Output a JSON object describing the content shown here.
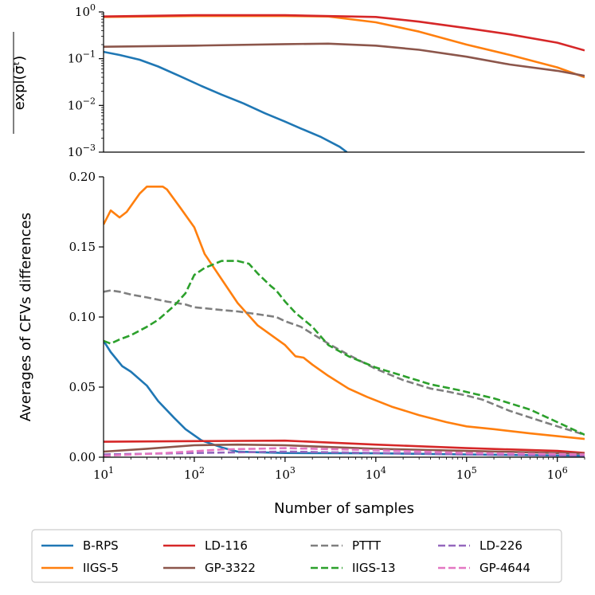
{
  "chart_data": [
    {
      "type": "line",
      "panel": "top",
      "ylabel": "expl(σ̄ᵗ)",
      "yscale": "log",
      "xscale": "log",
      "xlim": [
        10,
        2000000
      ],
      "ylim": [
        0.001,
        1
      ],
      "yticks": [
        {
          "value": 1,
          "base": "10",
          "exp": "0"
        },
        {
          "value": 0.1,
          "base": "10",
          "exp": "−1"
        },
        {
          "value": 0.01,
          "base": "10",
          "exp": "−2"
        },
        {
          "value": 0.001,
          "base": "10",
          "exp": "−3"
        }
      ],
      "series": [
        {
          "name": "B-RPS",
          "color": "#1f77b4",
          "dash": false,
          "x": [
            10,
            15,
            25,
            40,
            70,
            120,
            200,
            350,
            600,
            1000,
            1500,
            2500,
            4000,
            4800
          ],
          "y": [
            0.14,
            0.12,
            0.095,
            0.068,
            0.042,
            0.026,
            0.017,
            0.011,
            0.0068,
            0.0045,
            0.0032,
            0.0021,
            0.0013,
            0.001
          ]
        },
        {
          "name": "IIGS-5",
          "color": "#ff7f0e",
          "dash": false,
          "x": [
            10,
            100,
            1000,
            3000,
            10000,
            30000,
            100000,
            300000,
            1000000,
            2000000
          ],
          "y": [
            0.78,
            0.82,
            0.82,
            0.8,
            0.6,
            0.38,
            0.2,
            0.12,
            0.065,
            0.04
          ]
        },
        {
          "name": "LD-116",
          "color": "#d62728",
          "dash": false,
          "x": [
            10,
            100,
            1000,
            10000,
            30000,
            100000,
            300000,
            1000000,
            2000000
          ],
          "y": [
            0.8,
            0.85,
            0.85,
            0.78,
            0.62,
            0.45,
            0.33,
            0.22,
            0.15
          ]
        },
        {
          "name": "GP-3322",
          "color": "#8c564b",
          "dash": false,
          "x": [
            10,
            100,
            1000,
            3000,
            10000,
            30000,
            100000,
            300000,
            1000000,
            2000000
          ],
          "y": [
            0.18,
            0.19,
            0.205,
            0.21,
            0.19,
            0.155,
            0.11,
            0.075,
            0.055,
            0.043
          ]
        }
      ]
    },
    {
      "type": "line",
      "panel": "bottom",
      "xlabel": "Number of samples",
      "ylabel": "Averages of CFVs differences",
      "xscale": "log",
      "xlim": [
        10,
        2000000
      ],
      "ylim": [
        0,
        0.2
      ],
      "yticks": [
        {
          "value": 0,
          "label": "0.00"
        },
        {
          "value": 0.05,
          "label": "0.05"
        },
        {
          "value": 0.1,
          "label": "0.10"
        },
        {
          "value": 0.15,
          "label": "0.15"
        },
        {
          "value": 0.2,
          "label": "0.20"
        }
      ],
      "xticks": [
        {
          "value": 10,
          "base": "10",
          "exp": "1"
        },
        {
          "value": 100,
          "base": "10",
          "exp": "2"
        },
        {
          "value": 1000,
          "base": "10",
          "exp": "3"
        },
        {
          "value": 10000,
          "base": "10",
          "exp": "4"
        },
        {
          "value": 100000,
          "base": "10",
          "exp": "5"
        },
        {
          "value": 1000000,
          "base": "10",
          "exp": "6"
        }
      ],
      "series": [
        {
          "name": "B-RPS",
          "color": "#1f77b4",
          "dash": false,
          "x": [
            10,
            12,
            16,
            20,
            30,
            40,
            60,
            80,
            120,
            200,
            300,
            500,
            1000,
            10000,
            100000,
            2000000
          ],
          "y": [
            0.083,
            0.075,
            0.065,
            0.061,
            0.051,
            0.04,
            0.028,
            0.02,
            0.012,
            0.007,
            0.004,
            0.0035,
            0.003,
            0.0028,
            0.002,
            0.001
          ]
        },
        {
          "name": "IIGS-5",
          "color": "#ff7f0e",
          "dash": false,
          "x": [
            10,
            12,
            15,
            18,
            25,
            30,
            35,
            45,
            50,
            70,
            100,
            130,
            200,
            300,
            500,
            1000,
            1300,
            1600,
            2000,
            3000,
            5000,
            8000,
            15000,
            30000,
            60000,
            100000,
            200000,
            500000,
            1000000,
            2000000
          ],
          "y": [
            0.166,
            0.176,
            0.171,
            0.175,
            0.188,
            0.193,
            0.193,
            0.193,
            0.191,
            0.178,
            0.164,
            0.145,
            0.127,
            0.11,
            0.094,
            0.08,
            0.072,
            0.071,
            0.066,
            0.058,
            0.049,
            0.043,
            0.036,
            0.03,
            0.025,
            0.022,
            0.02,
            0.017,
            0.015,
            0.013
          ]
        },
        {
          "name": "LD-116",
          "color": "#d62728",
          "dash": false,
          "x": [
            10,
            100,
            1000,
            10000,
            100000,
            1000000,
            2000000
          ],
          "y": [
            0.011,
            0.0115,
            0.0118,
            0.009,
            0.0065,
            0.0045,
            0.003
          ]
        },
        {
          "name": "GP-3322",
          "color": "#8c564b",
          "dash": false,
          "x": [
            10,
            30,
            100,
            300,
            1000,
            10000,
            100000,
            1000000,
            2000000
          ],
          "y": [
            0.004,
            0.006,
            0.0085,
            0.009,
            0.0085,
            0.006,
            0.0045,
            0.003,
            0.0025
          ]
        },
        {
          "name": "PTTT",
          "color": "#7f7f7f",
          "dash": true,
          "x": [
            10,
            12,
            15,
            20,
            30,
            50,
            80,
            100,
            200,
            300,
            500,
            800,
            1000,
            1500,
            2000,
            3000,
            5000,
            10000,
            20000,
            40000,
            60000,
            100000,
            150000,
            300000,
            1000000,
            2000000
          ],
          "y": [
            0.118,
            0.119,
            0.118,
            0.116,
            0.114,
            0.111,
            0.109,
            0.107,
            0.105,
            0.104,
            0.102,
            0.1,
            0.097,
            0.093,
            0.088,
            0.081,
            0.073,
            0.063,
            0.055,
            0.049,
            0.047,
            0.044,
            0.041,
            0.033,
            0.022,
            0.016
          ]
        },
        {
          "name": "IIGS-13",
          "color": "#2ca02c",
          "dash": true,
          "x": [
            10,
            12,
            15,
            20,
            30,
            40,
            60,
            80,
            100,
            130,
            200,
            300,
            400,
            500,
            700,
            800,
            1000,
            1300,
            2000,
            3000,
            5000,
            10000,
            20000,
            40000,
            80000,
            200000,
            500000,
            1000000,
            2000000
          ],
          "y": [
            0.083,
            0.081,
            0.084,
            0.087,
            0.093,
            0.098,
            0.108,
            0.117,
            0.13,
            0.135,
            0.14,
            0.14,
            0.138,
            0.131,
            0.122,
            0.119,
            0.111,
            0.103,
            0.093,
            0.08,
            0.072,
            0.064,
            0.058,
            0.052,
            0.048,
            0.042,
            0.034,
            0.025,
            0.016
          ]
        },
        {
          "name": "LD-226",
          "color": "#9467bd",
          "dash": true,
          "x": [
            10,
            100,
            1000,
            10000,
            100000,
            2000000
          ],
          "y": [
            0.002,
            0.003,
            0.004,
            0.003,
            0.002,
            0.001
          ]
        },
        {
          "name": "GP-4644",
          "color": "#e377c2",
          "dash": true,
          "x": [
            10,
            50,
            200,
            1000,
            10000,
            100000,
            2000000
          ],
          "y": [
            0.001,
            0.003,
            0.0055,
            0.0065,
            0.005,
            0.003,
            0.002
          ]
        }
      ]
    }
  ],
  "legend": {
    "location": "bottom",
    "items": [
      {
        "label": "B-RPS",
        "color": "#1f77b4",
        "dash": false
      },
      {
        "label": "LD-116",
        "color": "#d62728",
        "dash": false
      },
      {
        "label": "PTTT",
        "color": "#7f7f7f",
        "dash": true
      },
      {
        "label": "LD-226",
        "color": "#9467bd",
        "dash": true
      },
      {
        "label": "IIGS-5",
        "color": "#ff7f0e",
        "dash": false
      },
      {
        "label": "GP-3322",
        "color": "#8c564b",
        "dash": false
      },
      {
        "label": "IIGS-13",
        "color": "#2ca02c",
        "dash": true
      },
      {
        "label": "GP-4644",
        "color": "#e377c2",
        "dash": true
      }
    ]
  }
}
